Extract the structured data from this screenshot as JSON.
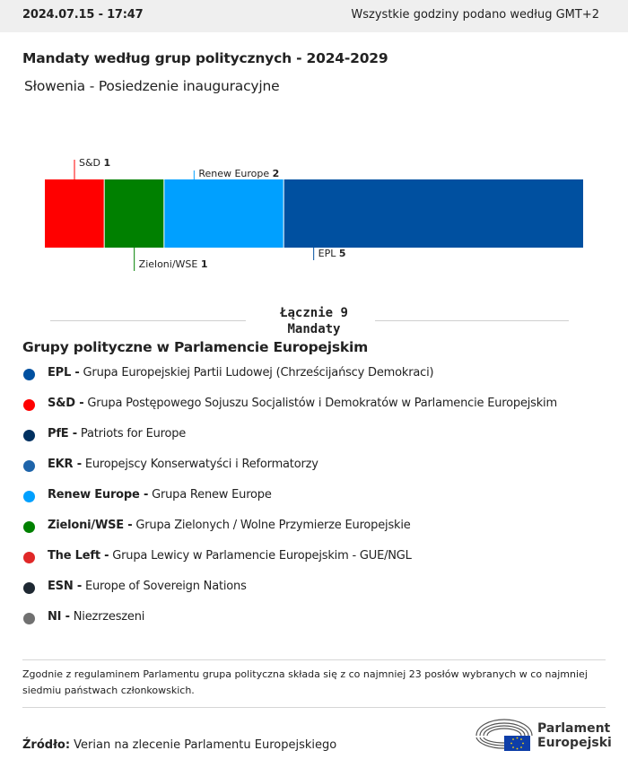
{
  "header": {
    "timestamp": "2024.07.15 - 17:47",
    "timezone_note": "Wszystkie godziny podano według GMT+2"
  },
  "title": "Mandaty według grup politycznych - 2024-2029",
  "subtitle": "Słowenia - Posiedzenie inauguracyjne",
  "chart_data": {
    "type": "bar",
    "stacked": true,
    "orientation": "horizontal",
    "total": 9,
    "series": [
      {
        "name": "S&D",
        "value": 1,
        "color": "#ff0000",
        "label_position": "top"
      },
      {
        "name": "Zieloni/WSE",
        "value": 1,
        "color": "#008000",
        "label_position": "bottom"
      },
      {
        "name": "Renew Europe",
        "value": 2,
        "color": "#00a0ff",
        "label_position": "top"
      },
      {
        "name": "EPL",
        "value": 5,
        "color": "#0050a0",
        "label_position": "bottom"
      }
    ]
  },
  "total": {
    "line1": "Łącznie 9",
    "line2": "Mandaty"
  },
  "legend": {
    "title": "Grupy polityczne w Parlamencie Europejskim",
    "items": [
      {
        "abbr": "EPL -",
        "desc": "Grupa Europejskiej Partii Ludowej (Chrześcijańscy Demokraci)",
        "color": "#0050a0"
      },
      {
        "abbr": "S&D -",
        "desc": "Grupa Postępowego Sojuszu Socjalistów i Demokratów w Parlamencie Europejskim",
        "color": "#ff0000"
      },
      {
        "abbr": "PfE -",
        "desc": "Patriots for Europe",
        "color": "#003060"
      },
      {
        "abbr": "EKR -",
        "desc": "Europejscy Konserwatyści i Reformatorzy",
        "color": "#1e64aa"
      },
      {
        "abbr": "Renew Europe -",
        "desc": "Grupa Renew Europe",
        "color": "#00a0ff"
      },
      {
        "abbr": "Zieloni/WSE -",
        "desc": "Grupa Zielonych / Wolne Przymierze Europejskie",
        "color": "#008000"
      },
      {
        "abbr": "The Left -",
        "desc": "Grupa Lewicy w Parlamencie Europejskim - GUE/NGL",
        "color": "#e02828"
      },
      {
        "abbr": "ESN -",
        "desc": "Europe of Sovereign Nations",
        "color": "#1e2832"
      },
      {
        "abbr": "NI -",
        "desc": "Niezrzeszeni",
        "color": "#707070"
      }
    ]
  },
  "note": "Zgodnie z regulaminem Parlamentu grupa polityczna składa się z co najmniej 23 posłów wybranych w co najmniej siedmiu państwach członkowskich.",
  "source": {
    "label": "Źródło:",
    "text": "Verian na zlecenie Parlamentu Europejskiego"
  },
  "logo": {
    "line1": "Parlament",
    "line2": "Europejski"
  }
}
